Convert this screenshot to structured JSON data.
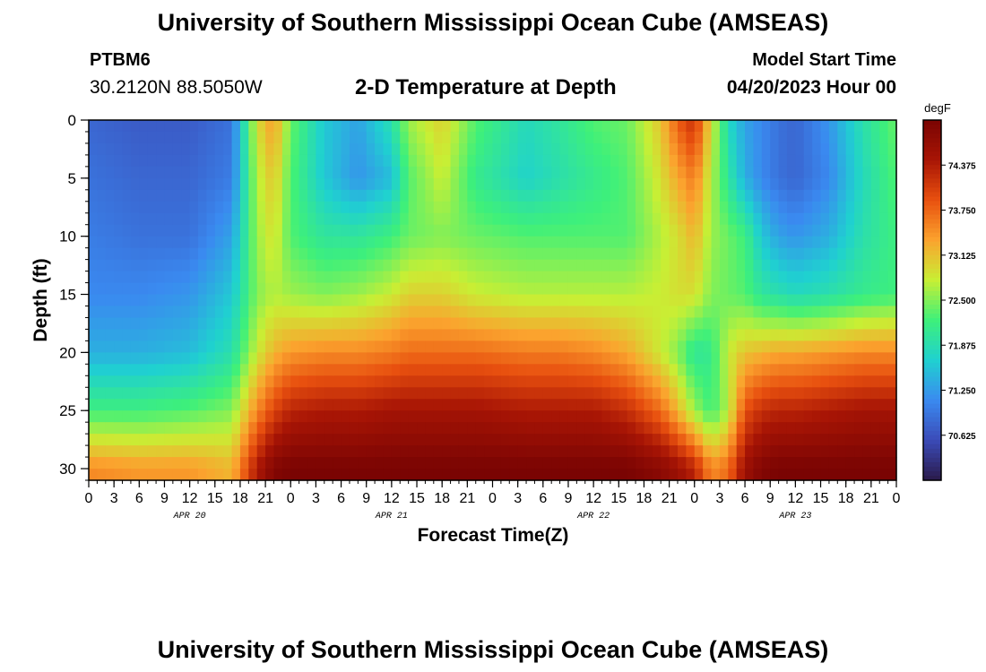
{
  "header": {
    "org_title": "University of Southern Mississippi Ocean Cube (AMSEAS)",
    "station_id": "PTBM6",
    "coordinates": "30.2120N  88.5050W",
    "chart_title": "2-D Temperature at Depth",
    "model_start_label": "Model Start Time",
    "model_start_value": "04/20/2023 Hour 00"
  },
  "footer": {
    "org_title": "University of Southern Mississippi Ocean Cube (AMSEAS)"
  },
  "chart_data": {
    "type": "heatmap",
    "title": "2-D Temperature at Depth",
    "xlabel": "Forecast Time(Z)",
    "ylabel": "Depth (ft)",
    "units": "degF",
    "x_tick_labels": [
      "0",
      "3",
      "6",
      "9",
      "12",
      "15",
      "18",
      "21",
      "0",
      "3",
      "6",
      "9",
      "12",
      "15",
      "18",
      "21",
      "0",
      "3",
      "6",
      "9",
      "12",
      "15",
      "18",
      "21",
      "0",
      "3",
      "6",
      "9",
      "12",
      "15",
      "18",
      "21",
      "0"
    ],
    "date_labels": [
      {
        "label": "APR 20",
        "hour": 12
      },
      {
        "label": "APR 21",
        "hour": 36
      },
      {
        "label": "APR 22",
        "hour": 60
      },
      {
        "label": "APR 23",
        "hour": 84
      }
    ],
    "y_tick_labels": [
      "0",
      "5",
      "10",
      "15",
      "20",
      "25",
      "30"
    ],
    "xlim": [
      0,
      96
    ],
    "ylim": [
      0,
      31
    ],
    "colorbar_ticks": [
      "74.375",
      "73.750",
      "73.125",
      "72.500",
      "71.875",
      "71.250",
      "70.625"
    ],
    "colorbar_range": [
      70.0,
      75.0
    ],
    "colormap": [
      "#2a1a4a",
      "#3b4bb8",
      "#3a8af0",
      "#1fd1d0",
      "#3ef07a",
      "#c8ef34",
      "#fba32e",
      "#e8500f",
      "#a81505",
      "#7a0403"
    ],
    "depth_levels_ft": [
      0,
      5,
      10,
      15,
      20,
      25,
      30
    ],
    "temperature_hours": [
      0,
      6,
      12,
      17,
      20,
      22,
      24,
      28,
      32,
      36,
      38,
      42,
      46,
      52,
      56,
      60,
      64,
      68,
      70,
      72,
      74,
      76,
      78,
      80,
      82,
      84,
      88,
      92,
      96
    ],
    "temperature_degF": [
      [
        70.8,
        70.7,
        70.7,
        70.9,
        72.9,
        73.4,
        72.4,
        71.6,
        71.3,
        71.9,
        72.6,
        73.0,
        72.3,
        71.8,
        72.0,
        72.3,
        72.4,
        73.1,
        73.8,
        74.2,
        72.9,
        71.8,
        71.3,
        71.1,
        70.9,
        70.8,
        71.2,
        71.9,
        72.4
      ],
      [
        70.9,
        70.8,
        70.8,
        71.0,
        72.7,
        73.1,
        72.3,
        71.6,
        71.2,
        71.5,
        72.3,
        72.8,
        72.1,
        71.7,
        71.9,
        72.1,
        72.3,
        72.9,
        73.3,
        73.6,
        72.7,
        72.0,
        71.4,
        71.1,
        70.9,
        70.8,
        71.1,
        71.8,
        72.3
      ],
      [
        71.0,
        70.9,
        70.9,
        71.3,
        72.6,
        72.9,
        72.3,
        72.0,
        72.0,
        72.2,
        72.4,
        72.5,
        72.4,
        72.3,
        72.3,
        72.3,
        72.3,
        72.7,
        72.9,
        73.2,
        72.6,
        72.4,
        72.2,
        71.6,
        71.3,
        71.2,
        71.4,
        71.9,
        72.2
      ],
      [
        71.1,
        71.1,
        71.2,
        71.6,
        72.5,
        72.7,
        72.6,
        72.5,
        72.6,
        72.8,
        73.0,
        73.0,
        72.8,
        72.7,
        72.7,
        72.7,
        72.7,
        72.8,
        72.9,
        72.9,
        72.5,
        72.4,
        72.3,
        72.0,
        71.9,
        71.8,
        71.9,
        72.1,
        72.2
      ],
      [
        71.4,
        71.4,
        71.5,
        71.9,
        72.8,
        73.2,
        73.4,
        73.5,
        73.5,
        73.6,
        73.7,
        73.7,
        73.7,
        73.6,
        73.6,
        73.5,
        73.3,
        72.8,
        72.5,
        72.0,
        72.1,
        72.8,
        73.1,
        73.2,
        73.3,
        73.3,
        73.4,
        73.5,
        73.5
      ],
      [
        72.2,
        72.2,
        72.3,
        72.5,
        73.5,
        74.0,
        74.3,
        74.4,
        74.4,
        74.5,
        74.5,
        74.5,
        74.5,
        74.4,
        74.4,
        74.4,
        74.2,
        73.7,
        73.2,
        72.6,
        72.2,
        72.7,
        73.9,
        74.2,
        74.3,
        74.3,
        74.4,
        74.5,
        74.5
      ],
      [
        73.5,
        73.4,
        73.4,
        73.2,
        74.4,
        74.9,
        75.0,
        75.0,
        75.0,
        75.0,
        75.0,
        75.0,
        75.0,
        75.0,
        75.0,
        75.0,
        75.0,
        74.8,
        74.6,
        74.3,
        73.5,
        73.7,
        74.6,
        74.9,
        75.0,
        75.0,
        75.0,
        75.0,
        75.0
      ]
    ]
  }
}
